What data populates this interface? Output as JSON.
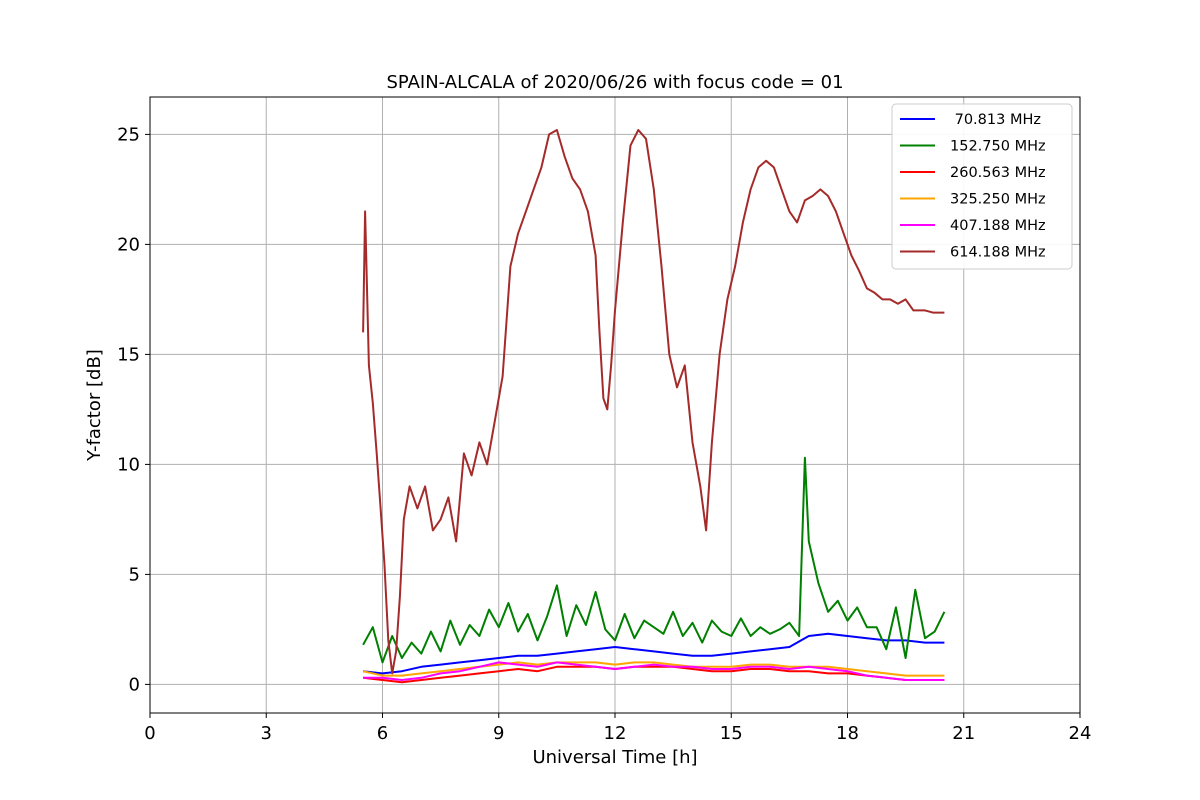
{
  "chart_data": {
    "type": "line",
    "title": "SPAIN-ALCALA of 2020/06/26 with focus code = 01",
    "xlabel": "Universal Time [h]",
    "ylabel": "Y-factor [dB]",
    "xlim": [
      0,
      24
    ],
    "ylim": [
      -1.3,
      26.7
    ],
    "xticks": [
      0,
      3,
      6,
      9,
      12,
      15,
      18,
      21,
      24
    ],
    "yticks": [
      0,
      5,
      10,
      15,
      20,
      25
    ],
    "grid": true,
    "legend_position": "top-right",
    "series": [
      {
        "name": " 70.813 MHz",
        "color": "#0000ff",
        "x": [
          5.5,
          6.0,
          6.5,
          7.0,
          7.5,
          8.0,
          8.5,
          9.0,
          9.5,
          10.0,
          10.5,
          11.0,
          11.5,
          12.0,
          12.5,
          13.0,
          13.5,
          14.0,
          14.5,
          15.0,
          15.5,
          16.0,
          16.5,
          17.0,
          17.5,
          18.0,
          18.5,
          19.0,
          19.5,
          20.0,
          20.5
        ],
        "y": [
          0.6,
          0.5,
          0.6,
          0.8,
          0.9,
          1.0,
          1.1,
          1.2,
          1.3,
          1.3,
          1.4,
          1.5,
          1.6,
          1.7,
          1.6,
          1.5,
          1.4,
          1.3,
          1.3,
          1.4,
          1.5,
          1.6,
          1.7,
          2.2,
          2.3,
          2.2,
          2.1,
          2.0,
          2.0,
          1.9,
          1.9
        ]
      },
      {
        "name": "152.750 MHz",
        "color": "#008000",
        "x": [
          5.5,
          5.75,
          6.0,
          6.25,
          6.5,
          6.75,
          7.0,
          7.25,
          7.5,
          7.75,
          8.0,
          8.25,
          8.5,
          8.75,
          9.0,
          9.25,
          9.5,
          9.75,
          10.0,
          10.25,
          10.5,
          10.75,
          11.0,
          11.25,
          11.5,
          11.75,
          12.0,
          12.25,
          12.5,
          12.75,
          13.0,
          13.25,
          13.5,
          13.75,
          14.0,
          14.25,
          14.5,
          14.75,
          15.0,
          15.25,
          15.5,
          15.75,
          16.0,
          16.25,
          16.5,
          16.75,
          16.9,
          17.0,
          17.25,
          17.5,
          17.75,
          18.0,
          18.25,
          18.5,
          18.75,
          19.0,
          19.25,
          19.5,
          19.75,
          20.0,
          20.25,
          20.5
        ],
        "y": [
          1.8,
          2.6,
          1.0,
          2.2,
          1.2,
          1.9,
          1.4,
          2.4,
          1.5,
          2.9,
          1.8,
          2.7,
          2.2,
          3.4,
          2.6,
          3.7,
          2.4,
          3.2,
          2.0,
          3.1,
          4.5,
          2.2,
          3.6,
          2.7,
          4.2,
          2.5,
          2.0,
          3.2,
          2.1,
          2.9,
          2.6,
          2.3,
          3.3,
          2.2,
          2.8,
          1.9,
          2.9,
          2.4,
          2.2,
          3.0,
          2.2,
          2.6,
          2.3,
          2.5,
          2.8,
          2.2,
          10.3,
          6.5,
          4.6,
          3.3,
          3.8,
          2.9,
          3.5,
          2.6,
          2.6,
          1.6,
          3.5,
          1.2,
          4.3,
          2.1,
          2.4,
          3.3
        ]
      },
      {
        "name": "260.563 MHz",
        "color": "#ff0000",
        "x": [
          5.5,
          6.0,
          6.5,
          7.0,
          7.5,
          8.0,
          8.5,
          9.0,
          9.5,
          10.0,
          10.5,
          11.0,
          11.5,
          12.0,
          12.5,
          13.0,
          13.5,
          14.0,
          14.5,
          15.0,
          15.5,
          16.0,
          16.5,
          17.0,
          17.5,
          18.0,
          18.5,
          19.0,
          19.5,
          20.0,
          20.5
        ],
        "y": [
          0.3,
          0.2,
          0.1,
          0.2,
          0.3,
          0.4,
          0.5,
          0.6,
          0.7,
          0.6,
          0.8,
          0.8,
          0.8,
          0.7,
          0.8,
          0.8,
          0.8,
          0.7,
          0.6,
          0.6,
          0.7,
          0.7,
          0.6,
          0.6,
          0.5,
          0.5,
          0.4,
          0.3,
          0.2,
          0.2,
          0.2
        ]
      },
      {
        "name": "325.250 MHz",
        "color": "#ffa500",
        "x": [
          5.5,
          6.0,
          6.5,
          7.0,
          7.5,
          8.0,
          8.5,
          9.0,
          9.5,
          10.0,
          10.5,
          11.0,
          11.5,
          12.0,
          12.5,
          13.0,
          13.5,
          14.0,
          14.5,
          15.0,
          15.5,
          16.0,
          16.5,
          17.0,
          17.5,
          18.0,
          18.5,
          19.0,
          19.5,
          20.0,
          20.5
        ],
        "y": [
          0.6,
          0.4,
          0.4,
          0.5,
          0.6,
          0.7,
          0.8,
          0.9,
          1.0,
          0.9,
          1.0,
          1.0,
          1.0,
          0.9,
          1.0,
          1.0,
          0.9,
          0.8,
          0.8,
          0.8,
          0.9,
          0.9,
          0.8,
          0.8,
          0.8,
          0.7,
          0.6,
          0.5,
          0.4,
          0.4,
          0.4
        ]
      },
      {
        "name": "407.188 MHz",
        "color": "#ff00ff",
        "x": [
          5.5,
          6.0,
          6.5,
          7.0,
          7.5,
          8.0,
          8.5,
          9.0,
          9.5,
          10.0,
          10.5,
          11.0,
          11.5,
          12.0,
          12.5,
          13.0,
          13.5,
          14.0,
          14.5,
          15.0,
          15.5,
          16.0,
          16.5,
          17.0,
          17.5,
          18.0,
          18.5,
          19.0,
          19.5,
          20.0,
          20.5
        ],
        "y": [
          0.3,
          0.3,
          0.2,
          0.3,
          0.5,
          0.6,
          0.8,
          1.0,
          0.9,
          0.8,
          1.0,
          0.9,
          0.8,
          0.7,
          0.8,
          0.9,
          0.8,
          0.8,
          0.7,
          0.7,
          0.8,
          0.8,
          0.7,
          0.8,
          0.7,
          0.6,
          0.4,
          0.3,
          0.2,
          0.2,
          0.2
        ]
      },
      {
        "name": "614.188 MHz",
        "color": "#a52a2a",
        "x": [
          5.5,
          5.55,
          5.65,
          5.75,
          5.85,
          5.95,
          6.05,
          6.15,
          6.25,
          6.35,
          6.45,
          6.55,
          6.7,
          6.9,
          7.1,
          7.3,
          7.5,
          7.7,
          7.9,
          8.1,
          8.3,
          8.5,
          8.7,
          8.9,
          9.1,
          9.3,
          9.5,
          9.7,
          9.9,
          10.1,
          10.3,
          10.5,
          10.7,
          10.9,
          11.1,
          11.3,
          11.5,
          11.6,
          11.7,
          11.8,
          11.9,
          12.0,
          12.2,
          12.4,
          12.6,
          12.8,
          13.0,
          13.2,
          13.4,
          13.6,
          13.8,
          14.0,
          14.2,
          14.35,
          14.5,
          14.7,
          14.9,
          15.1,
          15.3,
          15.5,
          15.7,
          15.9,
          16.1,
          16.3,
          16.5,
          16.7,
          16.9,
          17.1,
          17.3,
          17.5,
          17.7,
          17.9,
          18.1,
          18.3,
          18.5,
          18.7,
          18.9,
          19.1,
          19.3,
          19.5,
          19.7,
          20.0,
          20.2,
          20.5
        ],
        "y": [
          16.0,
          21.5,
          14.5,
          12.8,
          10.5,
          8.0,
          5.5,
          2.0,
          0.5,
          1.5,
          4.0,
          7.5,
          9.0,
          8.0,
          9.0,
          7.0,
          7.5,
          8.5,
          6.5,
          10.5,
          9.5,
          11.0,
          10.0,
          12.0,
          14.0,
          19.0,
          20.5,
          21.5,
          22.5,
          23.5,
          25.0,
          25.2,
          24.0,
          23.0,
          22.5,
          21.5,
          19.5,
          16.0,
          13.0,
          12.5,
          14.5,
          17.0,
          21.0,
          24.5,
          25.2,
          24.8,
          22.5,
          19.0,
          15.0,
          13.5,
          14.5,
          11.0,
          9.0,
          7.0,
          11.0,
          15.0,
          17.5,
          19.0,
          21.0,
          22.5,
          23.5,
          23.8,
          23.5,
          22.5,
          21.5,
          21.0,
          22.0,
          22.2,
          22.5,
          22.2,
          21.5,
          20.5,
          19.5,
          18.8,
          18.0,
          17.8,
          17.5,
          17.5,
          17.3,
          17.5,
          17.0,
          17.0,
          16.9,
          16.9
        ]
      }
    ]
  }
}
